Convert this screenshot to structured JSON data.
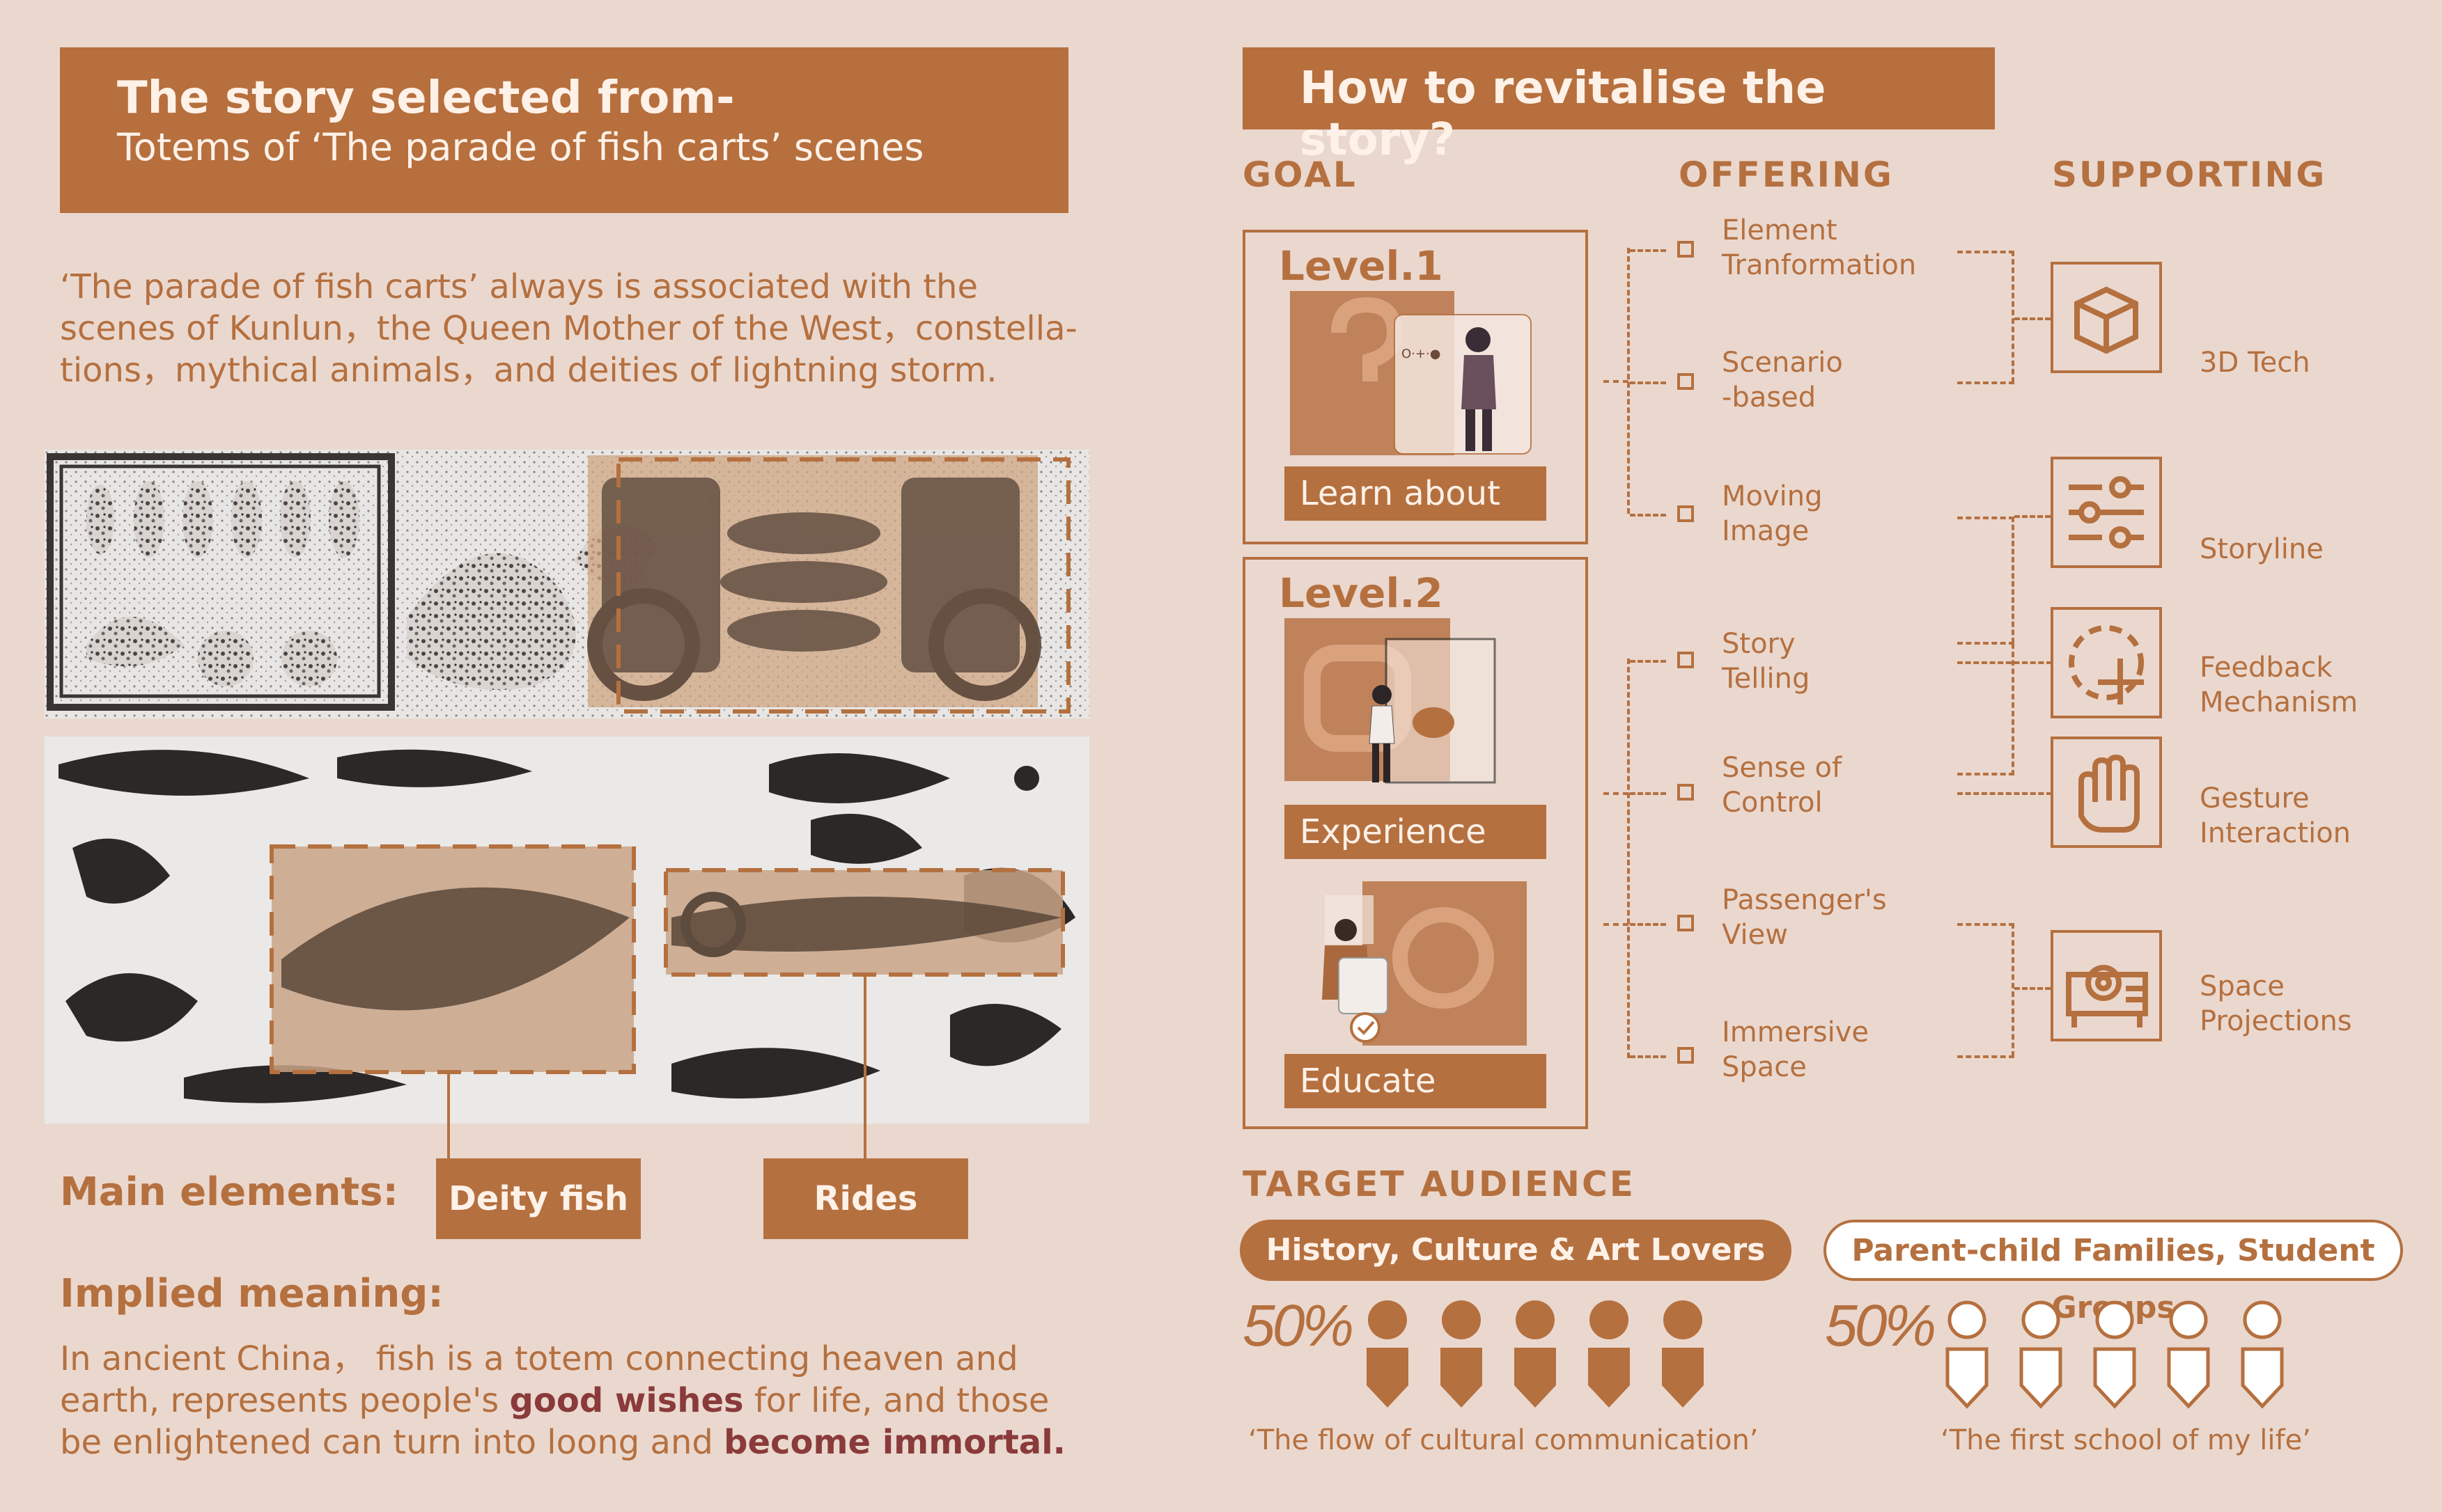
{
  "left": {
    "header_line1": "The story selected from-",
    "header_line2": "Totems of ‘The parade of fish carts’ scenes",
    "intro": [
      "‘The parade of fish carts’ always is associated with the",
      "scenes of Kunlun，the Queen Mother of the West，constella-",
      "tions，mythical animals，and deities of lightning storm."
    ],
    "main_elements_label": "Main elements:",
    "tags": [
      "Deity fish",
      "Rides"
    ],
    "implied_label": "Implied meaning:",
    "implied_text": {
      "l1": "In ancient China，  fish is a totem connecting heaven and",
      "l2a": "earth, represents people's ",
      "l2b": "good wishes",
      "l2c": " for life,  and those",
      "l3a": "be enlightened can turn into loong and ",
      "l3b": "become immortal."
    }
  },
  "right": {
    "header": "How to revitalise the story?",
    "col_goal": "GOAL",
    "col_offering": "OFFERING",
    "col_supporting": "SUPPORTING",
    "level1": "Level.1",
    "level2": "Level.2",
    "goals": [
      "Learn about",
      "Experience",
      "Educate"
    ],
    "offerings": [
      [
        "Element",
        "Tranformation"
      ],
      [
        "Scenario",
        "-based"
      ],
      [
        "Moving",
        "Image"
      ],
      [
        "Story",
        "Telling"
      ],
      [
        "Sense of",
        "Control"
      ],
      [
        "Passenger's",
        "View"
      ],
      [
        "Immersive",
        "Space"
      ]
    ],
    "supporting": [
      {
        "icon": "cube-icon",
        "label": [
          "3D Tech"
        ]
      },
      {
        "icon": "sliders-icon",
        "label": [
          "Storyline"
        ]
      },
      {
        "icon": "dashed-circle-plus-icon",
        "label": [
          "Feedback",
          "Mechanism"
        ]
      },
      {
        "icon": "hand-icon",
        "label": [
          "Gesture",
          "Interaction"
        ]
      },
      {
        "icon": "projector-icon",
        "label": [
          "Space",
          "Projections"
        ]
      }
    ],
    "target_label": "TARGET AUDIENCE",
    "audience": [
      {
        "name": "History, Culture & Art Lovers",
        "percent": "50%",
        "quote": "‘The flow of cultural communication’"
      },
      {
        "name": "Parent-child Families, Student Groups",
        "percent": "50%",
        "quote": "‘The first school of my life’"
      }
    ]
  },
  "colors": {
    "background": "#ead8cf",
    "accent": "#b5703f",
    "highlight": "#8a3a3a"
  }
}
